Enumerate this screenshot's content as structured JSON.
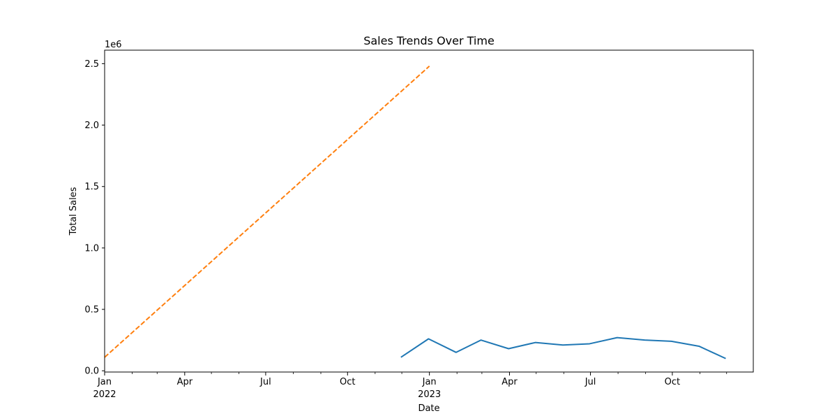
{
  "chart_data": {
    "type": "line",
    "title": "Sales Trends Over Time",
    "xlabel": "Date",
    "ylabel": "Total Sales",
    "y_offset_text": "1e6",
    "xlim": [
      "2022-01-01",
      "2023-12-31"
    ],
    "ylim": [
      -0.01,
      2.61
    ],
    "x_ticks_major": [
      {
        "date": "2022-01-01",
        "label": "Jan",
        "year": "2022"
      },
      {
        "date": "2022-04-01",
        "label": "Apr",
        "year": ""
      },
      {
        "date": "2022-07-01",
        "label": "Jul",
        "year": ""
      },
      {
        "date": "2022-10-01",
        "label": "Oct",
        "year": ""
      },
      {
        "date": "2023-01-01",
        "label": "Jan",
        "year": "2023"
      },
      {
        "date": "2023-04-01",
        "label": "Apr",
        "year": ""
      },
      {
        "date": "2023-07-01",
        "label": "Jul",
        "year": ""
      },
      {
        "date": "2023-10-01",
        "label": "Oct",
        "year": ""
      }
    ],
    "x_ticks_minor": [
      "2022-02-01",
      "2022-03-01",
      "2022-05-01",
      "2022-06-01",
      "2022-08-01",
      "2022-09-01",
      "2022-11-01",
      "2022-12-01",
      "2023-02-01",
      "2023-03-01",
      "2023-05-01",
      "2023-06-01",
      "2023-08-01",
      "2023-09-01",
      "2023-11-01",
      "2023-12-01"
    ],
    "y_ticks": [
      {
        "value": 0.0,
        "label": "0.0"
      },
      {
        "value": 0.5,
        "label": "0.5"
      },
      {
        "value": 1.0,
        "label": "1.0"
      },
      {
        "value": 1.5,
        "label": "1.5"
      },
      {
        "value": 2.0,
        "label": "2.0"
      },
      {
        "value": 2.5,
        "label": "2.5"
      }
    ],
    "grid": false,
    "series": [
      {
        "color": "#1f77b4",
        "style": "solid",
        "points": [
          {
            "x": "2022-11-30",
            "y": 0.11
          },
          {
            "x": "2022-12-31",
            "y": 0.26
          },
          {
            "x": "2023-01-31",
            "y": 0.15
          },
          {
            "x": "2023-02-28",
            "y": 0.25
          },
          {
            "x": "2023-03-31",
            "y": 0.18
          },
          {
            "x": "2023-04-30",
            "y": 0.23
          },
          {
            "x": "2023-05-31",
            "y": 0.21
          },
          {
            "x": "2023-06-30",
            "y": 0.22
          },
          {
            "x": "2023-07-31",
            "y": 0.27
          },
          {
            "x": "2023-08-31",
            "y": 0.25
          },
          {
            "x": "2023-09-30",
            "y": 0.24
          },
          {
            "x": "2023-10-31",
            "y": 0.2
          },
          {
            "x": "2023-11-30",
            "y": 0.1
          }
        ]
      },
      {
        "color": "#ff7f0e",
        "style": "dashed",
        "points": [
          {
            "x": "2022-01-01",
            "y": 0.11
          },
          {
            "x": "2023-01-01",
            "y": 2.48
          }
        ]
      }
    ]
  }
}
